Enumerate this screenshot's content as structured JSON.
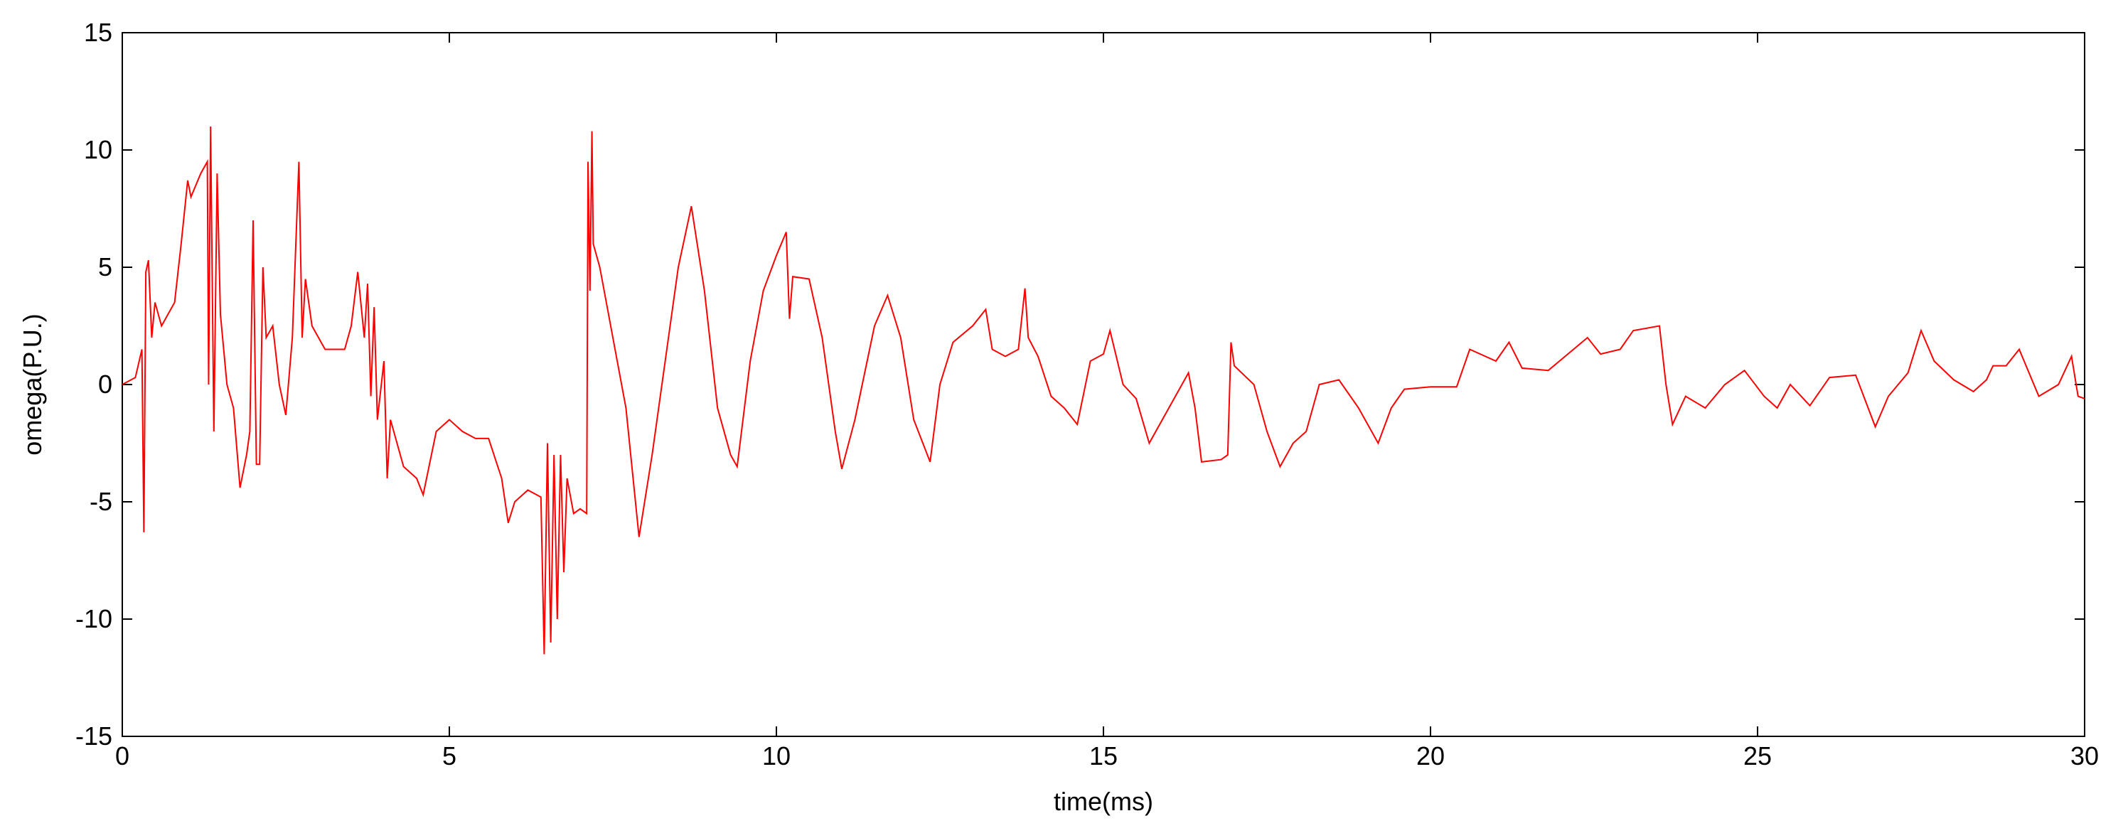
{
  "chart_data": {
    "type": "line",
    "xlabel": "time(ms)",
    "ylabel": "omega(P.U.)",
    "xlim": [
      0,
      30
    ],
    "ylim": [
      -15,
      15
    ],
    "xticks": [
      0,
      5,
      10,
      15,
      20,
      25,
      30
    ],
    "yticks": [
      -15,
      -10,
      -5,
      0,
      5,
      10,
      15
    ],
    "x": [
      0,
      0.2,
      0.3,
      0.33,
      0.36,
      0.4,
      0.45,
      0.5,
      0.6,
      0.7,
      0.8,
      0.9,
      1.0,
      1.05,
      1.2,
      1.3,
      1.32,
      1.35,
      1.4,
      1.45,
      1.5,
      1.6,
      1.7,
      1.8,
      1.9,
      1.95,
      2.0,
      2.05,
      2.1,
      2.15,
      2.2,
      2.3,
      2.4,
      2.5,
      2.6,
      2.7,
      2.75,
      2.8,
      2.9,
      3.0,
      3.1,
      3.2,
      3.4,
      3.5,
      3.6,
      3.7,
      3.75,
      3.8,
      3.85,
      3.9,
      4.0,
      4.05,
      4.1,
      4.2,
      4.3,
      4.5,
      4.6,
      4.8,
      5.0,
      5.2,
      5.4,
      5.6,
      5.8,
      5.9,
      6.0,
      6.2,
      6.4,
      6.45,
      6.5,
      6.55,
      6.6,
      6.65,
      6.7,
      6.75,
      6.8,
      6.9,
      7.0,
      7.1,
      7.12,
      7.15,
      7.18,
      7.2,
      7.3,
      7.5,
      7.7,
      7.9,
      8.1,
      8.3,
      8.5,
      8.7,
      8.9,
      9.1,
      9.3,
      9.4,
      9.6,
      9.8,
      10.0,
      10.15,
      10.2,
      10.25,
      10.5,
      10.7,
      10.9,
      11.0,
      11.2,
      11.5,
      11.7,
      11.9,
      12.1,
      12.35,
      12.5,
      12.7,
      13.0,
      13.2,
      13.3,
      13.5,
      13.7,
      13.8,
      13.85,
      14.0,
      14.2,
      14.4,
      14.6,
      14.8,
      15.0,
      15.1,
      15.3,
      15.5,
      15.7,
      16.0,
      16.3,
      16.4,
      16.5,
      16.8,
      16.9,
      16.95,
      17.0,
      17.3,
      17.5,
      17.7,
      17.9,
      18.1,
      18.3,
      18.6,
      18.9,
      19.2,
      19.4,
      19.6,
      20.0,
      20.4,
      20.6,
      21.0,
      21.2,
      21.4,
      21.8,
      22.1,
      22.4,
      22.6,
      22.9,
      23.1,
      23.5,
      23.6,
      23.7,
      23.9,
      24.2,
      24.5,
      24.8,
      25.1,
      25.3,
      25.5,
      25.8,
      26.1,
      26.5,
      26.8,
      27.0,
      27.3,
      27.5,
      27.7,
      28.0,
      28.3,
      28.5,
      28.6,
      28.8,
      29.0,
      29.3,
      29.6,
      29.8,
      29.9,
      30.0
    ],
    "series": [
      {
        "color": "#ff0000",
        "values": [
          0,
          0.3,
          1.5,
          -6.3,
          4.8,
          5.3,
          2,
          3.5,
          2.5,
          3,
          3.5,
          6,
          8.7,
          8,
          9,
          9.5,
          0,
          11,
          -2,
          9,
          3,
          0,
          -1,
          -4.4,
          -3,
          -2,
          7,
          -3.4,
          -3.4,
          5,
          2,
          2.5,
          0,
          -1.3,
          2,
          9.5,
          2,
          4.5,
          2.5,
          2.0,
          1.5,
          1.5,
          1.5,
          2.5,
          4.8,
          2,
          4.3,
          -0.5,
          3.3,
          -1.5,
          1,
          -4,
          -1.5,
          -2.5,
          -3.5,
          -4,
          -4.7,
          -2,
          -1.5,
          -2,
          -2.3,
          -2.3,
          -4,
          -5.9,
          -5,
          -4.5,
          -4.8,
          -11.5,
          -2.5,
          -11,
          -3,
          -10,
          -3,
          -8,
          -4,
          -5.5,
          -5.3,
          -5.5,
          9.5,
          4,
          10.8,
          6,
          5,
          2,
          -1,
          -6.5,
          -3,
          1,
          5,
          7.6,
          4,
          -1,
          -3,
          -3.5,
          1,
          4,
          5.5,
          6.5,
          2.8,
          4.6,
          4.5,
          2,
          -2,
          -3.6,
          -1.5,
          2.5,
          3.8,
          2,
          -1.5,
          -3.3,
          0,
          1.8,
          2.5,
          3.2,
          1.5,
          1.2,
          1.5,
          4.1,
          2,
          1.2,
          -0.5,
          -1,
          -1.7,
          1,
          1.3,
          2.3,
          0,
          -0.6,
          -2.5,
          -1,
          0.5,
          -1,
          -3.3,
          -3.2,
          -3,
          1.8,
          0.8,
          0,
          -2,
          -3.5,
          -2.5,
          -2,
          0,
          0.2,
          -1,
          -2.5,
          -1,
          -0.2,
          -0.1,
          -0.1,
          1.5,
          1.0,
          1.8,
          0.7,
          0.6,
          1.3,
          2.0,
          1.3,
          1.5,
          2.3,
          2.5,
          0,
          -1.7,
          -0.5,
          -1,
          0,
          0.6,
          -0.5,
          -1,
          0,
          -0.9,
          0.3,
          0.4,
          -1.8,
          -0.5,
          0.5,
          2.3,
          1,
          0.2,
          -0.3,
          0.2,
          0.8,
          0.8,
          1.5,
          -0.5,
          0,
          1.2,
          -0.5,
          -0.6
        ]
      }
    ]
  }
}
